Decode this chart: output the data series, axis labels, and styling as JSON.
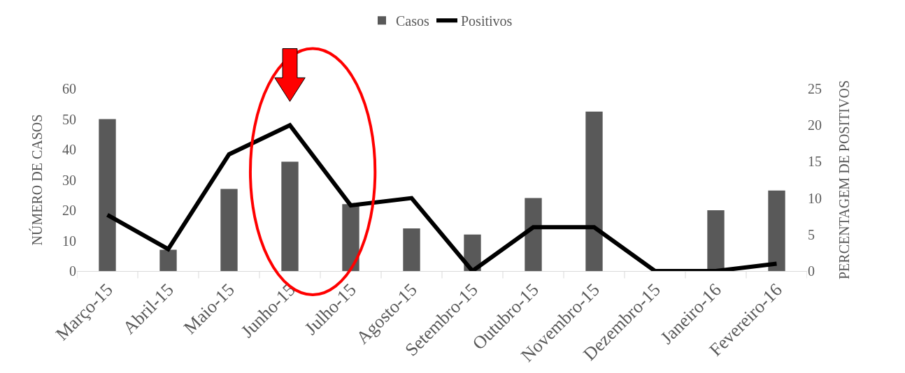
{
  "chart_data": {
    "type": "bar",
    "ylabel": "NÚMERO DE CASOS",
    "y2label": "PERCENTAGEM DE POSITIVOS",
    "categories": [
      "Março-15",
      "Abril-15",
      "Maio-15",
      "Junho-15",
      "Julho-15",
      "Agosto-15",
      "Setembro-15",
      "Outubro-15",
      "Novembro-15",
      "Dezembro-15",
      "Janeiro-16",
      "Fevereiro-16"
    ],
    "series": [
      {
        "name": "Casos",
        "color": "#595959",
        "values": [
          50,
          7,
          27,
          36,
          22,
          14,
          12,
          24,
          52.5,
          0,
          20,
          26.5
        ]
      },
      {
        "name": "Positivos",
        "type": "line",
        "axis": "y2",
        "color": "#000000",
        "values": [
          7.7,
          3,
          16,
          20,
          9,
          10,
          0,
          6,
          6,
          0,
          0,
          1
        ]
      }
    ],
    "ylim": [
      0,
      60
    ],
    "yticks": [
      0,
      10,
      20,
      30,
      40,
      50,
      60
    ],
    "y2lim": [
      0,
      25
    ],
    "y2ticks": [
      0,
      5,
      10,
      15,
      20,
      25
    ],
    "grid": false,
    "legend": "top",
    "marker": "none",
    "line_style": "solid"
  }
}
